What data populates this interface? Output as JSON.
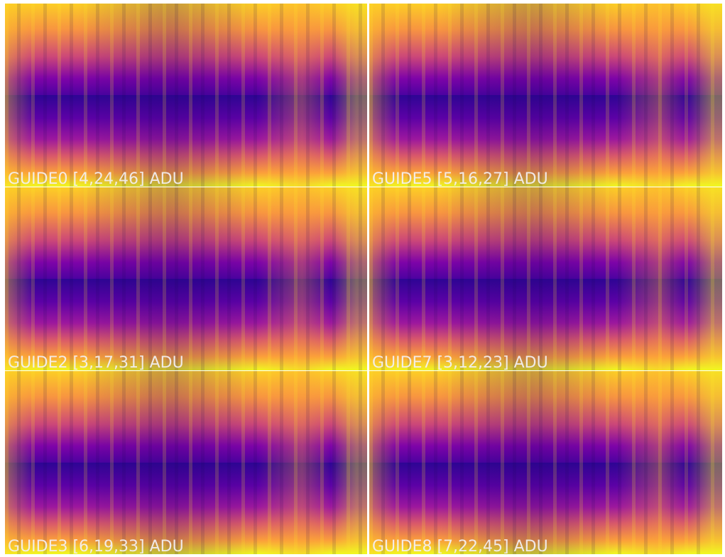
{
  "panels": [
    {
      "label": "GUIDE0 [4,24,46] ADU"
    },
    {
      "label": "GUIDE5 [5,16,27] ADU"
    },
    {
      "label": "GUIDE2 [3,17,31] ADU"
    },
    {
      "label": "GUIDE7 [3,12,23] ADU"
    },
    {
      "label": "GUIDE3 [6,19,33] ADU"
    },
    {
      "label": "GUIDE8 [7,22,45] ADU"
    }
  ]
}
